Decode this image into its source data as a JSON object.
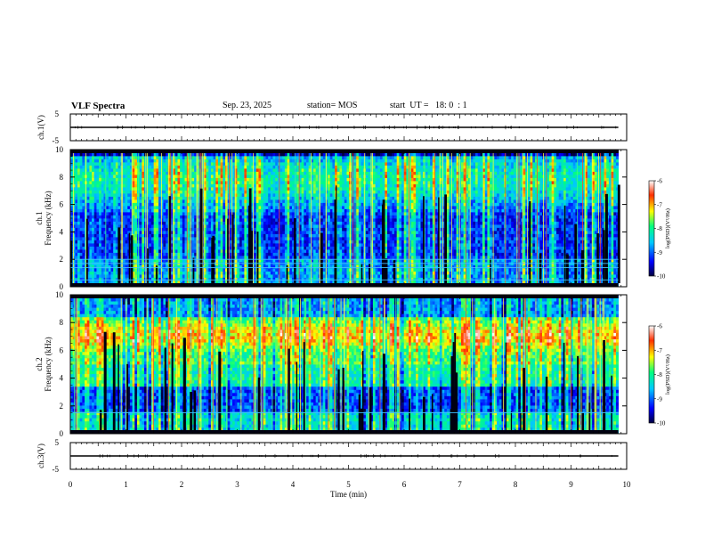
{
  "header": {
    "title": "VLF Spectra",
    "date": "Sep. 23, 2025",
    "station": "station= MOS",
    "start_ut": "start  UT =   18: 0  : 1"
  },
  "chart_data": [
    {
      "type": "line",
      "panel": "ch1-waveform",
      "ylabel": "ch.1(V)",
      "ylim": [
        -5,
        5
      ],
      "y_ticks": [
        "5",
        "-5"
      ],
      "series": [
        {
          "x": [
            0,
            9.85
          ],
          "y": [
            0,
            0
          ]
        }
      ]
    },
    {
      "type": "heatmap",
      "panel": "ch1-spectrogram",
      "ylabel": "ch.1\nFrequency (kHz)",
      "xlim": [
        0,
        9.85
      ],
      "ylim": [
        0,
        10
      ],
      "y_ticks": [
        "0",
        "2",
        "4",
        "6",
        "8",
        "10"
      ],
      "colorbar": {
        "label": "log(PSD)(V²/Hz)",
        "range": [
          -10,
          -6
        ],
        "ticks": [
          "-6",
          "-7",
          "-8",
          "-9",
          "-10"
        ],
        "colors": [
          "#000040",
          "#0000ff",
          "#00c8ff",
          "#00ff80",
          "#ffff00",
          "#ff3000",
          "#ffffff"
        ]
      },
      "bands_khz": {
        "high_energy": [
          0.0,
          9.8
        ],
        "background_floor": [
          2.0,
          5.5
        ],
        "line_khz": [
          0.5,
          1.4,
          1.7,
          2.0
        ]
      }
    },
    {
      "type": "heatmap",
      "panel": "ch2-spectrogram",
      "ylabel": "ch.2\nFrequency (kHz)",
      "xlim": [
        0,
        9.85
      ],
      "ylim": [
        0,
        10
      ],
      "y_ticks": [
        "0",
        "2",
        "4",
        "6",
        "8",
        "10"
      ],
      "colorbar": {
        "label": "log(PSD)(V²/Hz)",
        "range": [
          -10,
          -6
        ],
        "ticks": [
          "-6",
          "-7",
          "-8",
          "-9",
          "-10"
        ],
        "colors": [
          "#000040",
          "#0000ff",
          "#00c8ff",
          "#00ff80",
          "#ffff00",
          "#ff3000",
          "#ffffff"
        ]
      },
      "bands_khz": {
        "high_energy": [
          5.0,
          7.5
        ],
        "background_floor": [
          1.5,
          3.5
        ],
        "line_khz": [
          1.5
        ]
      }
    },
    {
      "type": "line",
      "panel": "ch3-waveform",
      "ylabel": "ch.3(V)",
      "ylim": [
        -5,
        5
      ],
      "y_ticks": [
        "5",
        "-5"
      ],
      "series": [
        {
          "x": [
            0,
            9.85
          ],
          "y": [
            0,
            0
          ]
        }
      ]
    }
  ],
  "x_axis": {
    "label": "Time  (min)",
    "xlim": [
      0,
      10
    ],
    "ticks": [
      "0",
      "1",
      "2",
      "3",
      "4",
      "5",
      "6",
      "7",
      "8",
      "9",
      "10"
    ]
  }
}
